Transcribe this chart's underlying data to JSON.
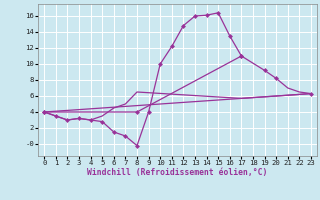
{
  "background_color": "#cce8f0",
  "grid_color": "#ffffff",
  "line_color": "#993399",
  "markersize": 2.5,
  "linewidth": 0.9,
  "xlabel": "Windchill (Refroidissement éolien,°C)",
  "xlabel_fontsize": 5.8,
  "tick_fontsize": 5.2,
  "xlim": [
    -0.5,
    23.5
  ],
  "ylim": [
    -1.5,
    17.5
  ],
  "yticks": [
    0,
    2,
    4,
    6,
    8,
    10,
    12,
    14,
    16
  ],
  "ytick_labels": [
    "-0",
    "2",
    "4",
    "6",
    "8",
    "10",
    "12",
    "14",
    "16"
  ],
  "xticks": [
    0,
    1,
    2,
    3,
    4,
    5,
    6,
    7,
    8,
    9,
    10,
    11,
    12,
    13,
    14,
    15,
    16,
    17,
    18,
    19,
    20,
    21,
    22,
    23
  ],
  "curve1_x": [
    0,
    1,
    2,
    3,
    4,
    5,
    6,
    7,
    8,
    9,
    10,
    11,
    12,
    13,
    14,
    15,
    16,
    17
  ],
  "curve1_y": [
    4.0,
    3.5,
    3.0,
    3.2,
    3.0,
    2.8,
    1.5,
    1.0,
    -0.2,
    4.0,
    10.0,
    12.2,
    14.8,
    16.0,
    16.1,
    16.4,
    13.5,
    11.0
  ],
  "curve2_x": [
    0,
    23
  ],
  "curve2_y": [
    4.0,
    6.3
  ],
  "curve3_x": [
    0,
    8,
    17,
    19,
    20,
    21,
    22,
    23
  ],
  "curve3_y": [
    4.0,
    4.0,
    11.0,
    9.2,
    8.2,
    7.0,
    6.5,
    6.3
  ],
  "curve3_markers_x": [
    0,
    8,
    17,
    19,
    20,
    23
  ],
  "curve3_markers_y": [
    4.0,
    4.0,
    11.0,
    9.2,
    8.2,
    6.3
  ],
  "curve4_x": [
    0,
    2,
    3,
    4,
    5,
    6,
    7,
    8,
    17,
    19,
    20,
    21,
    22,
    23
  ],
  "curve4_y": [
    4.0,
    3.0,
    3.2,
    3.0,
    3.5,
    4.5,
    5.0,
    6.5,
    5.7,
    5.9,
    6.0,
    6.1,
    6.2,
    6.3
  ]
}
